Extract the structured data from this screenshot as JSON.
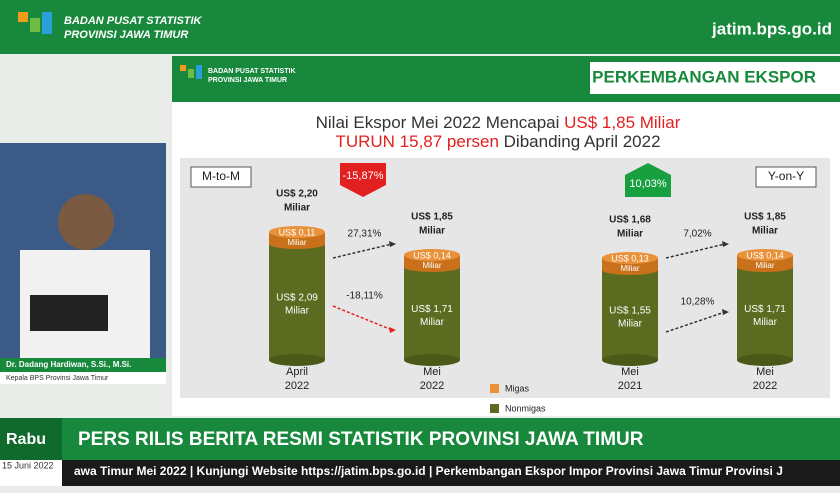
{
  "header": {
    "org_line1": "BADAN PUSAT STATISTIK",
    "org_line2": "PROVINSI JAWA TIMUR",
    "website": "jatim.bps.go.id"
  },
  "presenter": {
    "name": "Dr. Dadang Hardiwan, S.Si., M.Si.",
    "position": "Kepala BPS Provinsi Jawa Timur"
  },
  "slide": {
    "org_line1": "BADAN PUSAT STATISTIK",
    "org_line2": "PROVINSI JAWA TIMUR",
    "heading": "PERKEMBANGAN EKSPOR",
    "title_line1": "Nilai Ekspor Mei 2022 Mencapai ",
    "title_line1_highlight": "US$ 1,85 Miliar",
    "title_line2_highlight": "TURUN 15,87 persen",
    "title_line2": " Dibanding April 2022",
    "panels": [
      {
        "label": "M-to-M",
        "change": "-15,87%",
        "growth_migas": "27,31%",
        "growth_nonmigas": "-18,11%",
        "bars": [
          {
            "total": "US$ 2,20",
            "total_unit": "Miliar",
            "migas": "US$ 0,11",
            "migas_unit": "Miliar",
            "nonmigas": "US$ 2,09",
            "nonmigas_unit": "Miliar",
            "period": "April",
            "year": "2022"
          },
          {
            "total": "US$ 1,85",
            "total_unit": "Miliar",
            "migas": "US$ 0,14",
            "migas_unit": "Miliar",
            "nonmigas": "US$ 1,71",
            "nonmigas_unit": "Miliar",
            "period": "Mei",
            "year": "2022"
          }
        ]
      },
      {
        "label": "Y-on-Y",
        "change": "10,03%",
        "growth_migas": "7,02%",
        "growth_nonmigas": "10,28%",
        "bars": [
          {
            "total": "US$ 1,68",
            "total_unit": "Miliar",
            "migas": "US$ 0,13",
            "migas_unit": "Miliar",
            "nonmigas": "US$ 1,55",
            "nonmigas_unit": "Miliar",
            "period": "Mei",
            "year": "2021"
          },
          {
            "total": "US$ 1,85",
            "total_unit": "Miliar",
            "migas": "US$ 0,14",
            "migas_unit": "Miliar",
            "nonmigas": "US$ 1,71",
            "nonmigas_unit": "Miliar",
            "period": "Mei",
            "year": "2022"
          }
        ]
      }
    ],
    "legend": [
      "Migas",
      "Nonmigas"
    ]
  },
  "banner": {
    "day": "Rabu",
    "date": "15 Juni 2022",
    "headline": "PERS RILIS BERITA RESMI STATISTIK PROVINSI JAWA TIMUR",
    "ticker": "awa Timur Mei 2022 | Kunjungi Website https://jatim.bps.go.id | Perkembangan Ekspor Impor Provinsi Jawa Timur Provinsi J"
  }
}
